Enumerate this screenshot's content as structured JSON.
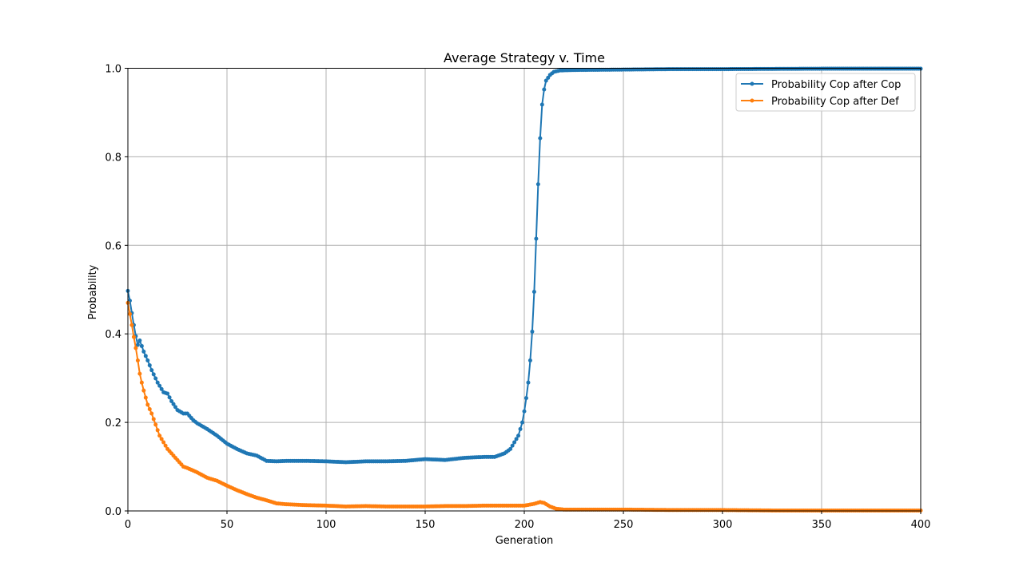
{
  "chart_data": {
    "type": "line",
    "title": "Average Strategy v. Time",
    "xlabel": "Generation",
    "ylabel": "Probability",
    "xlim": [
      0,
      400
    ],
    "ylim": [
      0,
      1
    ],
    "xticks": [
      0,
      50,
      100,
      150,
      200,
      250,
      300,
      350,
      400
    ],
    "xtick_labels": [
      "0",
      "50",
      "100",
      "150",
      "200",
      "250",
      "300",
      "350",
      "400"
    ],
    "yticks": [
      0,
      0.2,
      0.4,
      0.6,
      0.8,
      1.0
    ],
    "ytick_labels": [
      "0.0",
      "0.2",
      "0.4",
      "0.6",
      "0.8",
      "1.0"
    ],
    "grid": true,
    "legend_position": "top-right",
    "series": [
      {
        "name": "Probability Cop after Cop",
        "color": "#1f77b4",
        "key_points": [
          [
            0,
            0.497
          ],
          [
            1,
            0.475
          ],
          [
            2,
            0.447
          ],
          [
            3,
            0.42
          ],
          [
            4,
            0.395
          ],
          [
            5,
            0.375
          ],
          [
            6,
            0.385
          ],
          [
            8,
            0.36
          ],
          [
            10,
            0.34
          ],
          [
            12,
            0.318
          ],
          [
            15,
            0.29
          ],
          [
            18,
            0.268
          ],
          [
            20,
            0.265
          ],
          [
            22,
            0.248
          ],
          [
            25,
            0.228
          ],
          [
            28,
            0.22
          ],
          [
            30,
            0.22
          ],
          [
            33,
            0.205
          ],
          [
            35,
            0.198
          ],
          [
            40,
            0.185
          ],
          [
            45,
            0.17
          ],
          [
            50,
            0.152
          ],
          [
            55,
            0.14
          ],
          [
            60,
            0.13
          ],
          [
            65,
            0.125
          ],
          [
            70,
            0.113
          ],
          [
            75,
            0.112
          ],
          [
            80,
            0.113
          ],
          [
            90,
            0.113
          ],
          [
            100,
            0.112
          ],
          [
            110,
            0.11
          ],
          [
            120,
            0.112
          ],
          [
            130,
            0.112
          ],
          [
            140,
            0.113
          ],
          [
            150,
            0.117
          ],
          [
            160,
            0.115
          ],
          [
            170,
            0.12
          ],
          [
            180,
            0.122
          ],
          [
            185,
            0.122
          ],
          [
            190,
            0.13
          ],
          [
            193,
            0.14
          ],
          [
            195,
            0.155
          ],
          [
            197,
            0.17
          ],
          [
            198,
            0.185
          ],
          [
            199,
            0.2
          ],
          [
            200,
            0.225
          ],
          [
            201,
            0.255
          ],
          [
            202,
            0.29
          ],
          [
            203,
            0.34
          ],
          [
            204,
            0.405
          ],
          [
            205,
            0.495
          ],
          [
            206,
            0.615
          ],
          [
            207,
            0.738
          ],
          [
            208,
            0.842
          ],
          [
            209,
            0.918
          ],
          [
            210,
            0.952
          ],
          [
            211,
            0.972
          ],
          [
            213,
            0.985
          ],
          [
            215,
            0.992
          ],
          [
            218,
            0.995
          ],
          [
            225,
            0.996
          ],
          [
            250,
            0.997
          ],
          [
            275,
            0.998
          ],
          [
            300,
            0.998
          ],
          [
            350,
            0.999
          ],
          [
            400,
            0.999
          ]
        ]
      },
      {
        "name": "Probability Cop after Def",
        "color": "#ff7f0e",
        "key_points": [
          [
            0,
            0.47
          ],
          [
            1,
            0.445
          ],
          [
            2,
            0.42
          ],
          [
            3,
            0.393
          ],
          [
            4,
            0.368
          ],
          [
            5,
            0.34
          ],
          [
            6,
            0.31
          ],
          [
            7,
            0.29
          ],
          [
            8,
            0.272
          ],
          [
            9,
            0.256
          ],
          [
            10,
            0.24
          ],
          [
            12,
            0.22
          ],
          [
            14,
            0.195
          ],
          [
            16,
            0.17
          ],
          [
            18,
            0.155
          ],
          [
            20,
            0.14
          ],
          [
            22,
            0.13
          ],
          [
            25,
            0.115
          ],
          [
            28,
            0.1
          ],
          [
            30,
            0.097
          ],
          [
            35,
            0.087
          ],
          [
            40,
            0.075
          ],
          [
            45,
            0.068
          ],
          [
            50,
            0.057
          ],
          [
            55,
            0.047
          ],
          [
            60,
            0.038
          ],
          [
            65,
            0.03
          ],
          [
            70,
            0.024
          ],
          [
            75,
            0.017
          ],
          [
            80,
            0.015
          ],
          [
            90,
            0.013
          ],
          [
            100,
            0.012
          ],
          [
            110,
            0.01
          ],
          [
            120,
            0.011
          ],
          [
            130,
            0.01
          ],
          [
            140,
            0.01
          ],
          [
            150,
            0.01
          ],
          [
            160,
            0.011
          ],
          [
            170,
            0.011
          ],
          [
            180,
            0.012
          ],
          [
            190,
            0.012
          ],
          [
            200,
            0.012
          ],
          [
            205,
            0.016
          ],
          [
            208,
            0.02
          ],
          [
            210,
            0.018
          ],
          [
            213,
            0.01
          ],
          [
            216,
            0.005
          ],
          [
            220,
            0.003
          ],
          [
            230,
            0.003
          ],
          [
            250,
            0.003
          ],
          [
            275,
            0.002
          ],
          [
            300,
            0.002
          ],
          [
            325,
            0.001
          ],
          [
            350,
            0.001
          ],
          [
            400,
            0.001
          ]
        ]
      }
    ]
  }
}
